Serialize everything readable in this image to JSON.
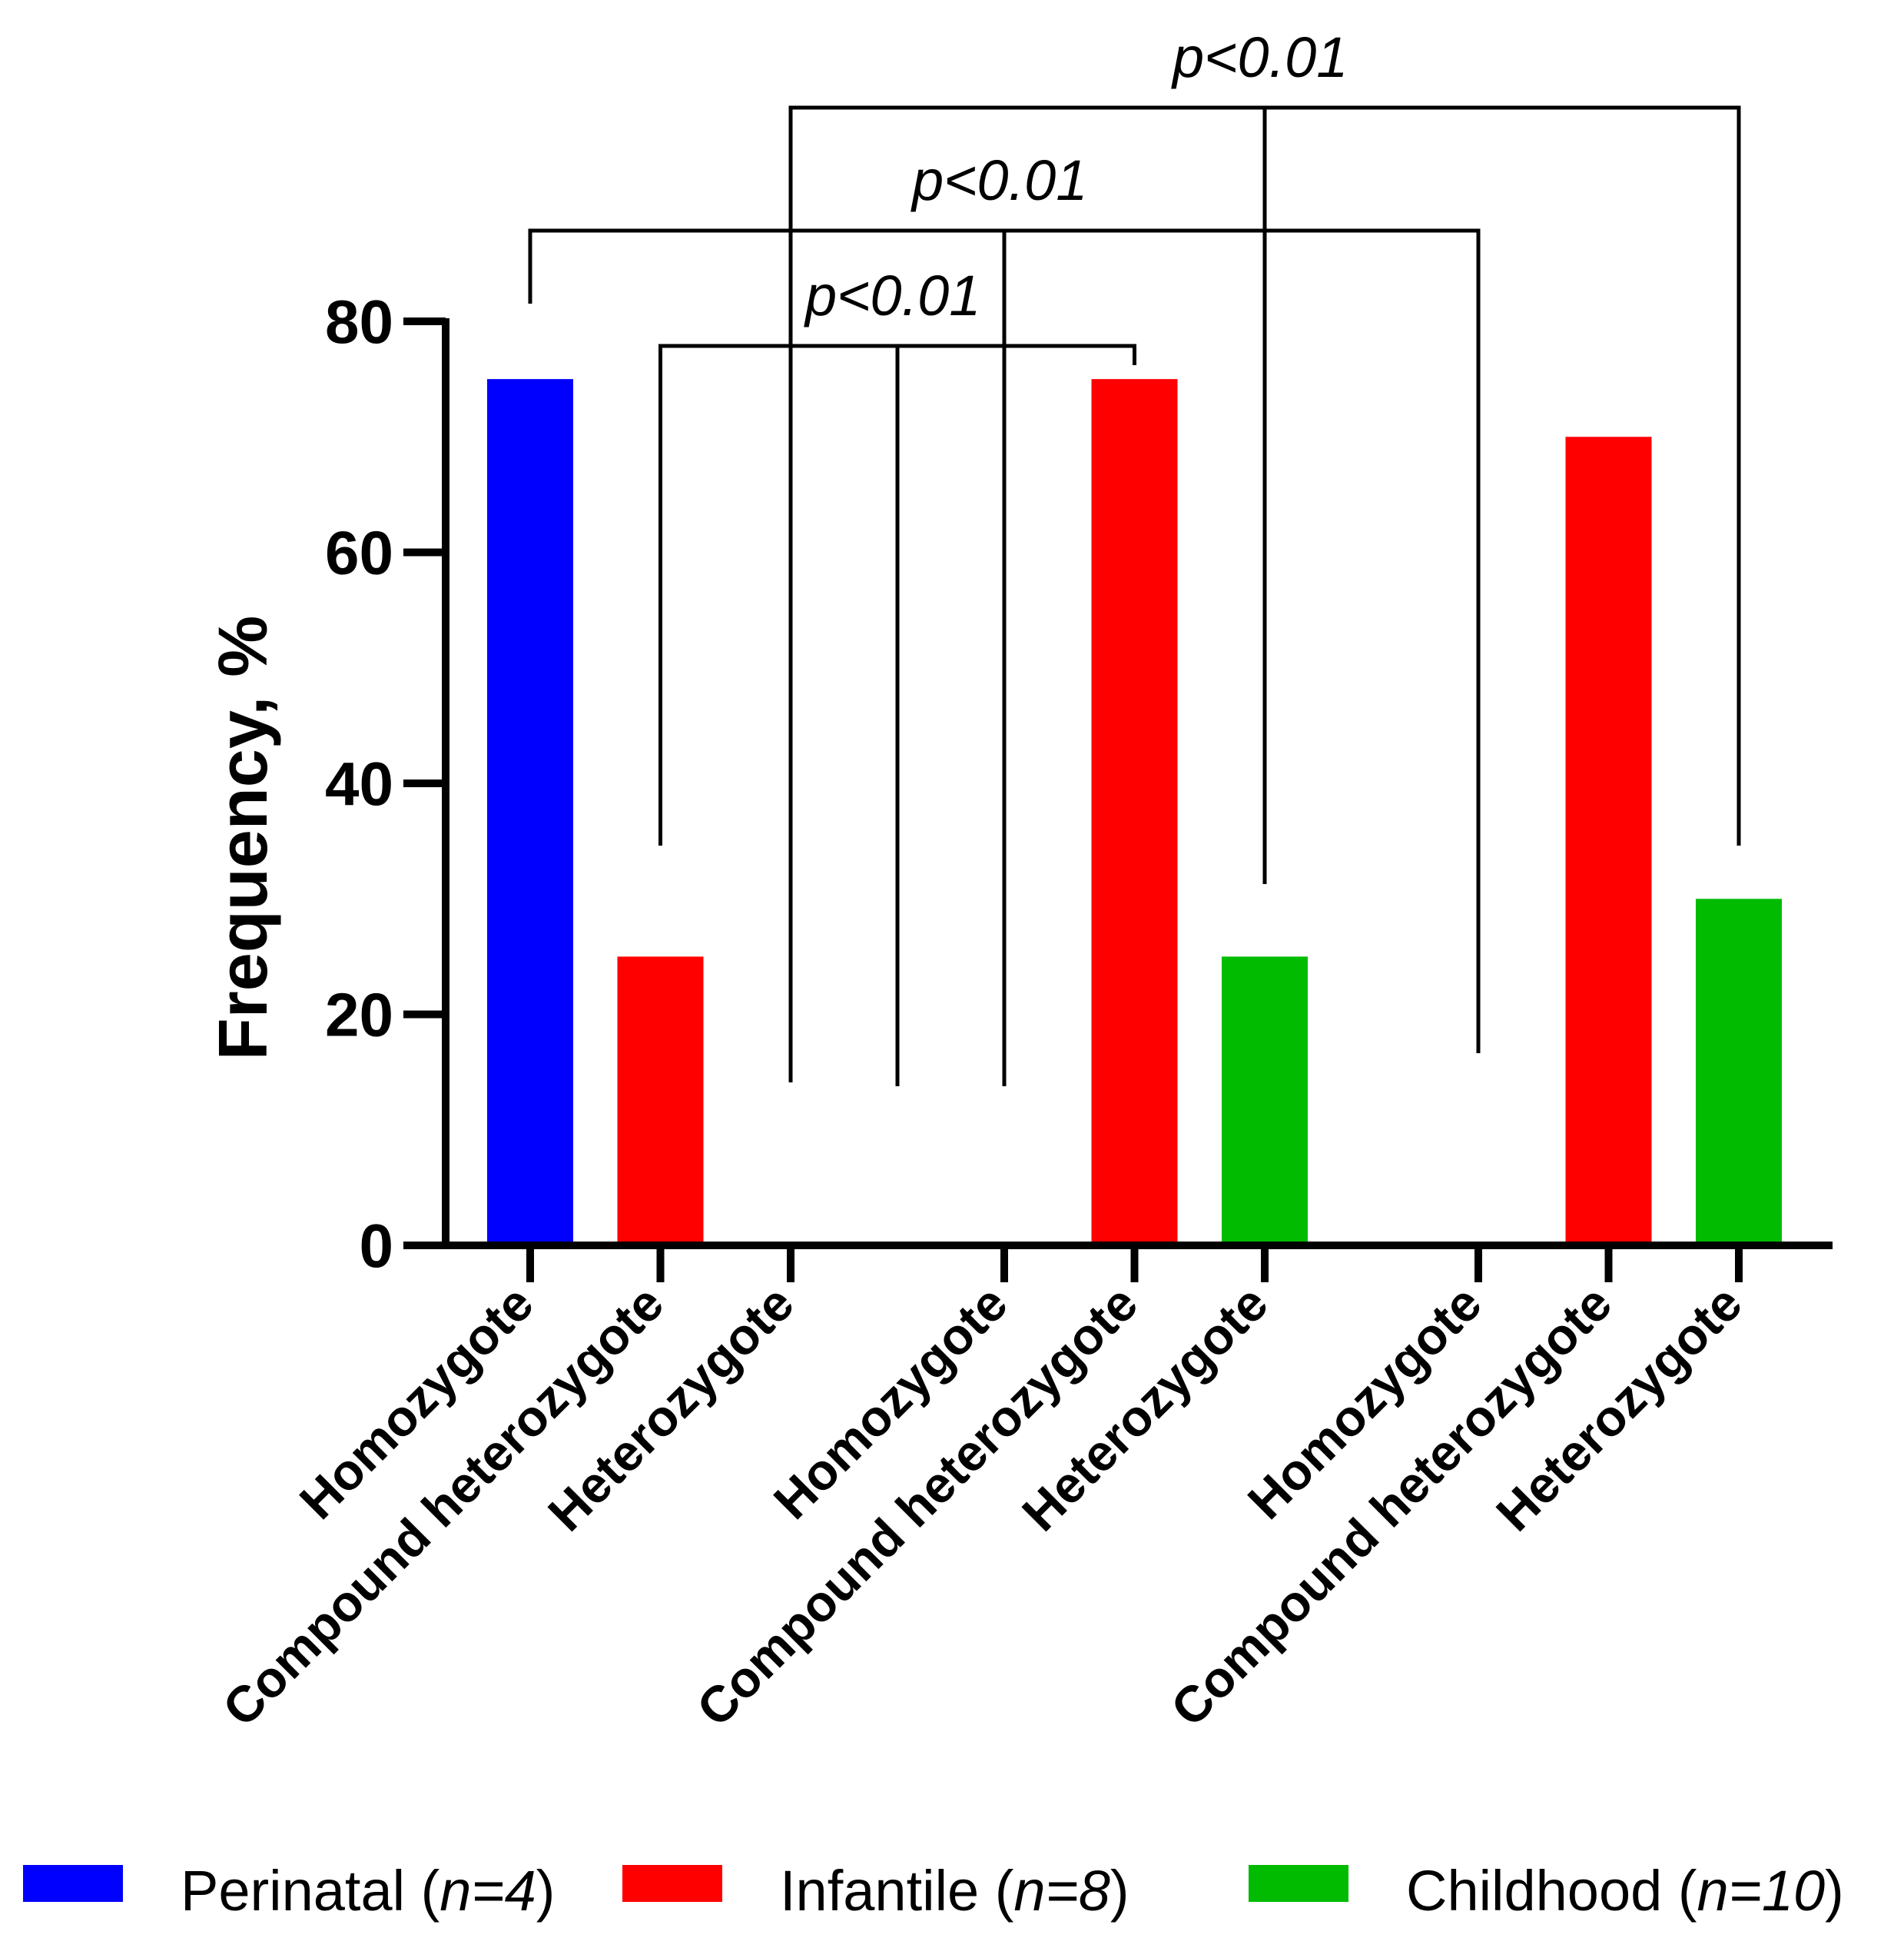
{
  "chart_data": {
    "type": "bar",
    "title": "",
    "xlabel": "",
    "ylabel": "Frequency, %",
    "ylim": [
      0,
      80
    ],
    "yticks": [
      0,
      20,
      40,
      60,
      80
    ],
    "groups": [
      {
        "series": "Perinatal",
        "categories": [
          "Homozygote",
          "Compound heterozygote",
          "Heterozygote"
        ],
        "values": [
          75,
          25,
          0
        ],
        "colors": [
          "#0000FF",
          "#FF0000",
          "#00BB00"
        ]
      },
      {
        "series": "Infantile",
        "categories": [
          "Homozygote",
          "Compound heterozygote",
          "Heterozygote"
        ],
        "values": [
          0,
          75,
          25
        ],
        "colors": [
          "#0000FF",
          "#FF0000",
          "#00BB00"
        ]
      },
      {
        "series": "Childhood",
        "categories": [
          "Homozygote",
          "Compound heterozygote",
          "Heterozygote"
        ],
        "values": [
          0,
          70,
          30
        ],
        "colors": [
          "#0000FF",
          "#FF0000",
          "#00BB00"
        ]
      }
    ],
    "significance": [
      {
        "from": [
          0,
          1
        ],
        "to": [
          1,
          1
        ],
        "label": "p<0.01"
      },
      {
        "from": [
          0,
          0
        ],
        "to": [
          2,
          0
        ],
        "label": "p<0.01"
      },
      {
        "from": [
          0,
          2
        ],
        "to": [
          2,
          2
        ],
        "label": "p<0.01"
      }
    ],
    "legend": [
      {
        "name": "Perinatal",
        "n": "n=4",
        "color": "#0000FF"
      },
      {
        "name": "Infantile",
        "n": "n=8",
        "color": "#FF0000"
      },
      {
        "name": "Childhood",
        "n": "n=10",
        "color": "#00BB00"
      }
    ],
    "legend_position": "bottom"
  }
}
